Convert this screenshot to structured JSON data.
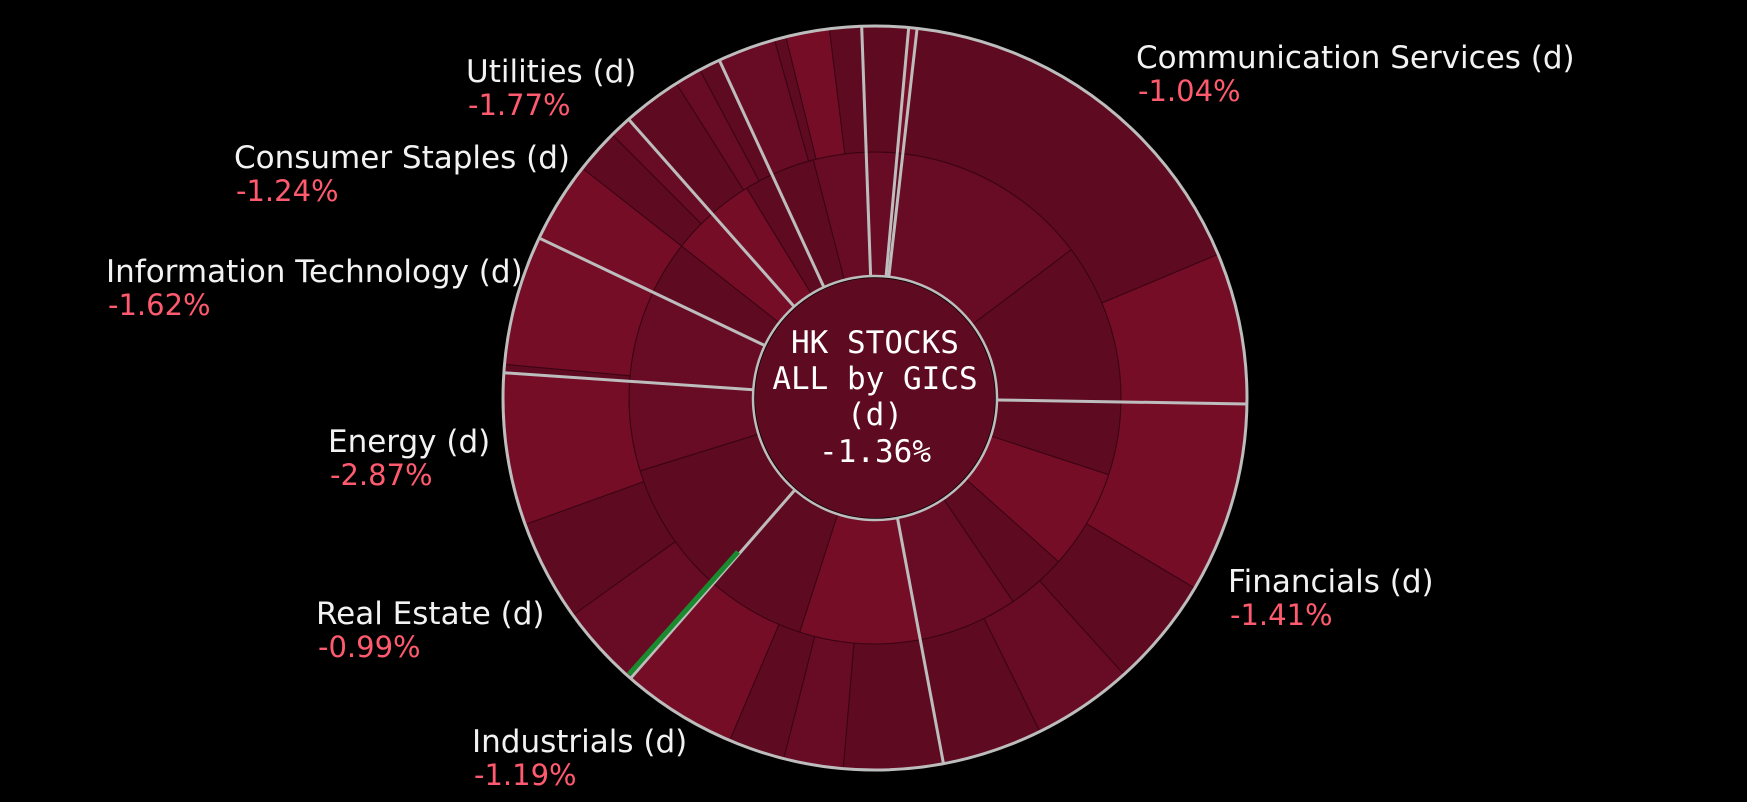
{
  "chart_data": {
    "type": "sunburst",
    "center": {
      "title_lines": [
        "HK STOCKS",
        "ALL by GICS",
        "(d)"
      ],
      "value": "-1.36%"
    },
    "sectors": [
      {
        "name": "Communication Services (d)",
        "change": "-1.04%",
        "share": 0.227,
        "mid": [
          0.55,
          0.45
        ],
        "outer": [
          0.72,
          0.28
        ]
      },
      {
        "name": "Financials (d)",
        "change": "-1.41%",
        "share": 0.211,
        "mid": [
          0.22,
          0.3,
          0.18,
          0.3
        ],
        "outer": [
          0.38,
          0.22,
          0.2,
          0.2
        ]
      },
      {
        "name": "Industrials (d)",
        "change": "-1.19%",
        "share": 0.139,
        "mid": [
          0.55,
          0.45
        ],
        "outer": [
          0.3,
          0.18,
          0.17,
          0.35
        ]
      },
      {
        "name": "Real Estate (d)",
        "change": "-0.99%",
        "share": 0.142,
        "mid": [
          0.6,
          0.4
        ],
        "outer": [
          0.25,
          0.3,
          0.45
        ]
      },
      {
        "name": "Energy (d)",
        "change": "-2.87%",
        "share": 0.058,
        "mid": [
          1.0
        ],
        "outer": [
          0.06,
          0.94
        ]
      },
      {
        "name": "Information Technology (d)",
        "change": "-1.62%",
        "share": 0.062,
        "mid": [
          0.55,
          0.45
        ],
        "outer": [
          0.55,
          0.3,
          0.15
        ]
      },
      {
        "name": "Consumer Staples (d)",
        "change": "-1.24%",
        "share": 0.045,
        "mid": [
          0.6,
          0.4
        ],
        "outer": [
          0.55,
          0.25,
          0.2
        ]
      },
      {
        "name": "Utilities (d)",
        "change": "-1.77%",
        "share": 0.061,
        "mid": [
          0.45,
          0.55
        ],
        "outer": [
          0.4,
          0.08,
          0.3,
          0.22
        ]
      },
      {
        "name": "",
        "change": "",
        "share": 0.0195,
        "mid": [
          1.0
        ],
        "outer": [
          1.0
        ]
      },
      {
        "name": "",
        "change": "",
        "share": 0.0035,
        "mid": [
          1.0
        ],
        "outer": [
          1.0
        ]
      }
    ],
    "colors": {
      "background": "#000000",
      "segment_dark": "#5e0a21",
      "segment_mid": "#680b24",
      "segment_light": "#760d27",
      "positive": "#1a8a2e",
      "border": "#bdbdbd",
      "label_name": "#f2f2f2",
      "label_value": "#ff5a6e"
    }
  }
}
